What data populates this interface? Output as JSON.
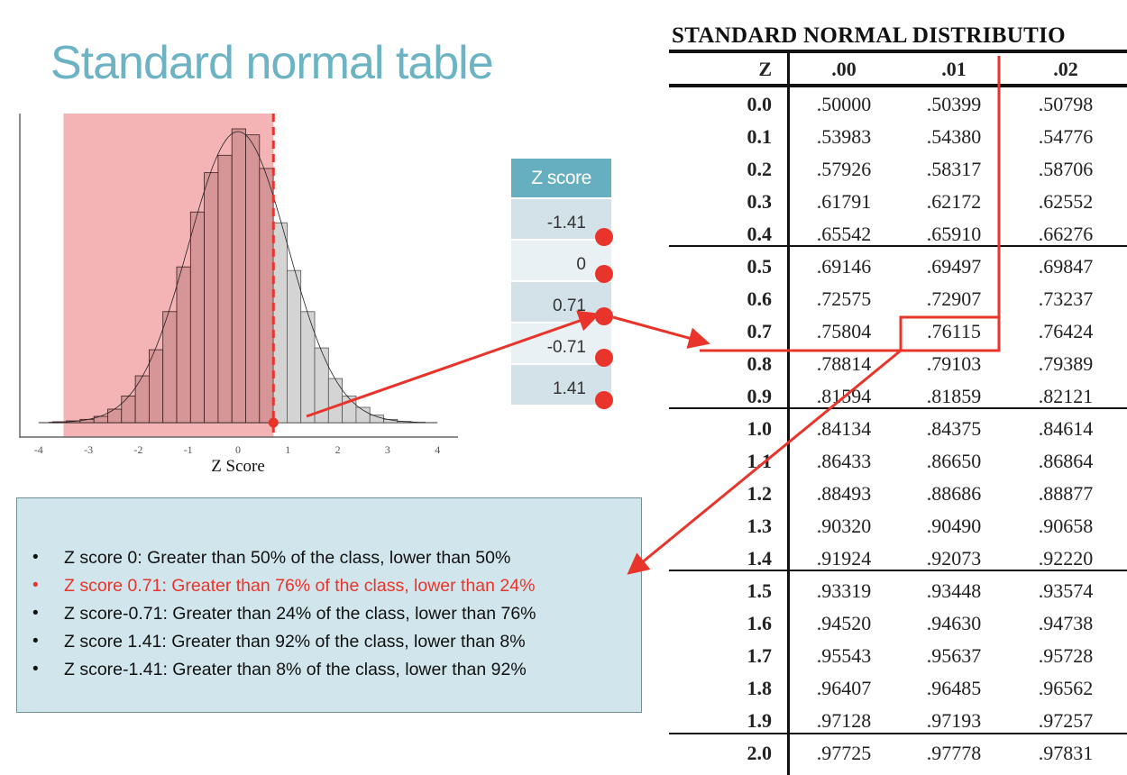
{
  "slide_title": "Standard normal table",
  "chart_data": {
    "type": "bar",
    "subtype": "histogram",
    "xlabel": "Z Score",
    "ylabel": "",
    "xlim": [
      -4,
      4
    ],
    "ylim": [
      0,
      1000
    ],
    "x_ticks": [
      "-4",
      "-3",
      "-2",
      "-1",
      "0",
      "1",
      "2",
      "3",
      "4"
    ],
    "bin_start": -3.72,
    "bin_width": 0.2767,
    "values": [
      3,
      6,
      11,
      21,
      45,
      89,
      156,
      243,
      370,
      519,
      702,
      833,
      891,
      979,
      959,
      847,
      666,
      507,
      370,
      249,
      147,
      89,
      51,
      25,
      11,
      4,
      2
    ],
    "normal_curve_peak": 970,
    "highlight_upper_z": 0.71,
    "highlight_lower_z": -3.5,
    "colors": {
      "shade": "#f4b4b5",
      "bar_below": "#d69697",
      "bar_above": "#d4d4d4",
      "marker": "#e8342a"
    }
  },
  "z_score_list": {
    "header": "Z score",
    "values": [
      "-1.41",
      "0",
      "0.71",
      "-0.71",
      "1.41"
    ]
  },
  "normal_table": {
    "title": "STANDARD NORMAL DISTRIBUTIO",
    "headers": [
      "Z",
      ".00",
      ".01",
      ".02"
    ],
    "rows": [
      [
        "0.0",
        ".50000",
        ".50399",
        ".50798"
      ],
      [
        "0.1",
        ".53983",
        ".54380",
        ".54776"
      ],
      [
        "0.2",
        ".57926",
        ".58317",
        ".58706"
      ],
      [
        "0.3",
        ".61791",
        ".62172",
        ".62552"
      ],
      [
        "0.4",
        ".65542",
        ".65910",
        ".66276"
      ],
      [
        "0.5",
        ".69146",
        ".69497",
        ".69847"
      ],
      [
        "0.6",
        ".72575",
        ".72907",
        ".73237"
      ],
      [
        "0.7",
        ".75804",
        ".76115",
        ".76424"
      ],
      [
        "0.8",
        ".78814",
        ".79103",
        ".79389"
      ],
      [
        "0.9",
        ".81594",
        ".81859",
        ".82121"
      ],
      [
        "1.0",
        ".84134",
        ".84375",
        ".84614"
      ],
      [
        "1.1",
        ".86433",
        ".86650",
        ".86864"
      ],
      [
        "1.2",
        ".88493",
        ".88686",
        ".88877"
      ],
      [
        "1.3",
        ".90320",
        ".90490",
        ".90658"
      ],
      [
        "1.4",
        ".91924",
        ".92073",
        ".92220"
      ],
      [
        "1.5",
        ".93319",
        ".93448",
        ".93574"
      ],
      [
        "1.6",
        ".94520",
        ".94630",
        ".94738"
      ],
      [
        "1.7",
        ".95543",
        ".95637",
        ".95728"
      ],
      [
        "1.8",
        ".96407",
        ".96485",
        ".96562"
      ],
      [
        "1.9",
        ".97128",
        ".97193",
        ".97257"
      ],
      [
        "2.0",
        ".97725",
        ".97778",
        ".97831"
      ]
    ],
    "highlighted_cell": ".76115"
  },
  "notes": {
    "bullet": "•",
    "items": [
      "Z score 0: Greater than 50% of the class, lower than 50%",
      "Z score 0.71: Greater than 76% of the class, lower than 24%",
      "Z score-0.71: Greater than 24% of the class, lower than 76%",
      "Z score 1.41: Greater than 92% of the class, lower than 8%",
      "Z score-1.41: Greater than 8% of the class, lower than 92%"
    ],
    "highlight_index": 1,
    "highlight_color": "#e8342a"
  }
}
